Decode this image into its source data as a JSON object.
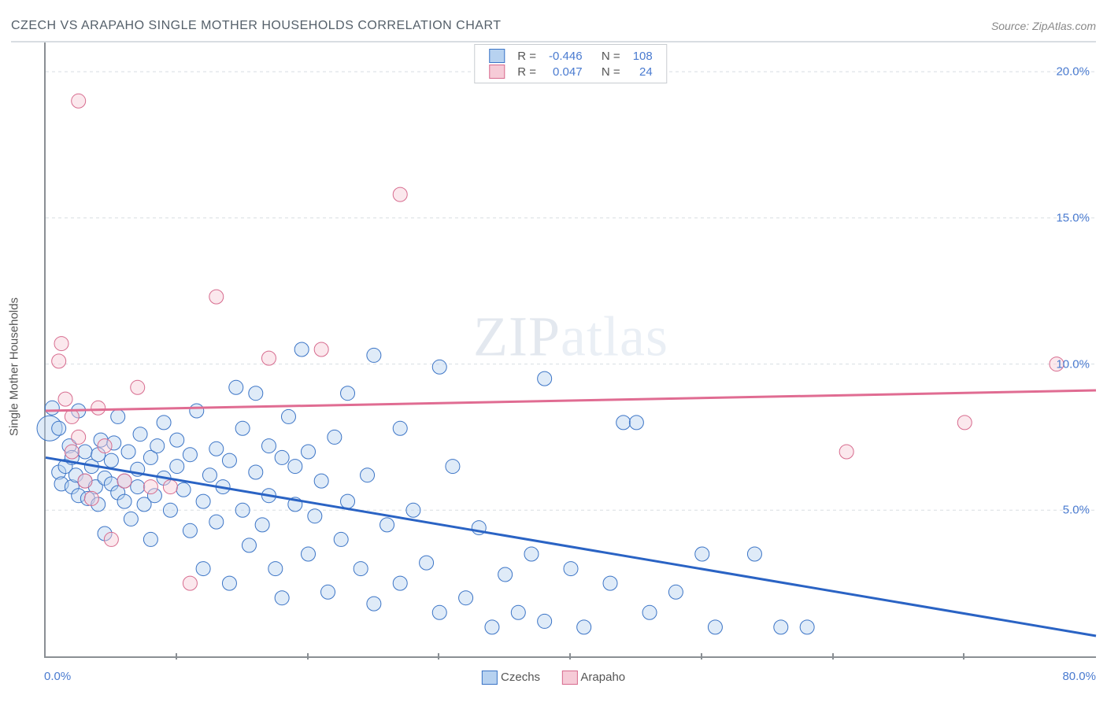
{
  "title": "CZECH VS ARAPAHO SINGLE MOTHER HOUSEHOLDS CORRELATION CHART",
  "source_label": "Source: ZipAtlas.com",
  "y_axis_label": "Single Mother Households",
  "watermark": {
    "zip": "ZIP",
    "atlas": "atlas"
  },
  "chart": {
    "type": "scatter",
    "background_color": "#ffffff",
    "grid_color": "#d8dde2",
    "axis_color": "#8a8f94",
    "tick_label_color": "#4a7bd0",
    "xlim": [
      0,
      80
    ],
    "ylim": [
      0,
      21
    ],
    "x_ticks": [
      0,
      10,
      20,
      30,
      40,
      50,
      60,
      70,
      80
    ],
    "x_tick_labels": {
      "0": "0.0%",
      "80": "80.0%"
    },
    "y_ticks": [
      5,
      10,
      15,
      20
    ],
    "y_tick_labels": {
      "5": "5.0%",
      "10": "10.0%",
      "15": "15.0%",
      "20": "20.0%"
    },
    "marker_radius": 9,
    "marker_radius_large": 16,
    "marker_stroke_width": 1,
    "marker_fill_opacity": 0.45,
    "trend_line_width": 3
  },
  "stats_legend": {
    "rows": [
      {
        "swatch_fill": "#b7d2f0",
        "swatch_stroke": "#3b74c6",
        "r_label": "R =",
        "r_value": "-0.446",
        "n_label": "N =",
        "n_value": "108"
      },
      {
        "swatch_fill": "#f6cbd7",
        "swatch_stroke": "#d76b8e",
        "r_label": "R =",
        "r_value": "0.047",
        "n_label": "N =",
        "n_value": "24"
      }
    ]
  },
  "series_legend": {
    "items": [
      {
        "swatch_fill": "#b7d2f0",
        "swatch_stroke": "#3b74c6",
        "label": "Czechs"
      },
      {
        "swatch_fill": "#f6cbd7",
        "swatch_stroke": "#d76b8e",
        "label": "Arapaho"
      }
    ]
  },
  "series": {
    "czechs": {
      "fill": "#b7d2f0",
      "stroke": "#3b74c6",
      "trend_color": "#2a63c4",
      "trend": {
        "x1": 0,
        "y1": 6.8,
        "x2": 80,
        "y2": 0.7
      },
      "large_points": [
        {
          "x": 0.3,
          "y": 7.8
        }
      ],
      "points": [
        {
          "x": 0.5,
          "y": 8.5
        },
        {
          "x": 1,
          "y": 7.8
        },
        {
          "x": 1,
          "y": 6.3
        },
        {
          "x": 1.2,
          "y": 5.9
        },
        {
          "x": 1.5,
          "y": 6.5
        },
        {
          "x": 1.8,
          "y": 7.2
        },
        {
          "x": 2,
          "y": 5.8
        },
        {
          "x": 2,
          "y": 6.8
        },
        {
          "x": 2.3,
          "y": 6.2
        },
        {
          "x": 2.5,
          "y": 5.5
        },
        {
          "x": 2.5,
          "y": 8.4
        },
        {
          "x": 3,
          "y": 6.0
        },
        {
          "x": 3,
          "y": 7.0
        },
        {
          "x": 3.2,
          "y": 5.4
        },
        {
          "x": 3.5,
          "y": 6.5
        },
        {
          "x": 3.8,
          "y": 5.8
        },
        {
          "x": 4,
          "y": 6.9
        },
        {
          "x": 4,
          "y": 5.2
        },
        {
          "x": 4.2,
          "y": 7.4
        },
        {
          "x": 4.5,
          "y": 6.1
        },
        {
          "x": 4.5,
          "y": 4.2
        },
        {
          "x": 5,
          "y": 5.9
        },
        {
          "x": 5,
          "y": 6.7
        },
        {
          "x": 5.2,
          "y": 7.3
        },
        {
          "x": 5.5,
          "y": 5.6
        },
        {
          "x": 5.5,
          "y": 8.2
        },
        {
          "x": 6,
          "y": 6.0
        },
        {
          "x": 6,
          "y": 5.3
        },
        {
          "x": 6.3,
          "y": 7.0
        },
        {
          "x": 6.5,
          "y": 4.7
        },
        {
          "x": 7,
          "y": 6.4
        },
        {
          "x": 7,
          "y": 5.8
        },
        {
          "x": 7.2,
          "y": 7.6
        },
        {
          "x": 7.5,
          "y": 5.2
        },
        {
          "x": 8,
          "y": 6.8
        },
        {
          "x": 8,
          "y": 4.0
        },
        {
          "x": 8.3,
          "y": 5.5
        },
        {
          "x": 8.5,
          "y": 7.2
        },
        {
          "x": 9,
          "y": 6.1
        },
        {
          "x": 9,
          "y": 8.0
        },
        {
          "x": 9.5,
          "y": 5.0
        },
        {
          "x": 10,
          "y": 6.5
        },
        {
          "x": 10,
          "y": 7.4
        },
        {
          "x": 10.5,
          "y": 5.7
        },
        {
          "x": 11,
          "y": 4.3
        },
        {
          "x": 11,
          "y": 6.9
        },
        {
          "x": 11.5,
          "y": 8.4
        },
        {
          "x": 12,
          "y": 5.3
        },
        {
          "x": 12,
          "y": 3.0
        },
        {
          "x": 12.5,
          "y": 6.2
        },
        {
          "x": 13,
          "y": 7.1
        },
        {
          "x": 13,
          "y": 4.6
        },
        {
          "x": 13.5,
          "y": 5.8
        },
        {
          "x": 14,
          "y": 2.5
        },
        {
          "x": 14,
          "y": 6.7
        },
        {
          "x": 14.5,
          "y": 9.2
        },
        {
          "x": 15,
          "y": 5.0
        },
        {
          "x": 15,
          "y": 7.8
        },
        {
          "x": 15.5,
          "y": 3.8
        },
        {
          "x": 16,
          "y": 6.3
        },
        {
          "x": 16,
          "y": 9.0
        },
        {
          "x": 16.5,
          "y": 4.5
        },
        {
          "x": 17,
          "y": 7.2
        },
        {
          "x": 17,
          "y": 5.5
        },
        {
          "x": 17.5,
          "y": 3.0
        },
        {
          "x": 18,
          "y": 6.8
        },
        {
          "x": 18,
          "y": 2.0
        },
        {
          "x": 18.5,
          "y": 8.2
        },
        {
          "x": 19,
          "y": 5.2
        },
        {
          "x": 19,
          "y": 6.5
        },
        {
          "x": 19.5,
          "y": 10.5
        },
        {
          "x": 20,
          "y": 3.5
        },
        {
          "x": 20,
          "y": 7.0
        },
        {
          "x": 20.5,
          "y": 4.8
        },
        {
          "x": 21,
          "y": 6.0
        },
        {
          "x": 21.5,
          "y": 2.2
        },
        {
          "x": 22,
          "y": 7.5
        },
        {
          "x": 22.5,
          "y": 4.0
        },
        {
          "x": 23,
          "y": 9.0
        },
        {
          "x": 23,
          "y": 5.3
        },
        {
          "x": 24,
          "y": 3.0
        },
        {
          "x": 24.5,
          "y": 6.2
        },
        {
          "x": 25,
          "y": 10.3
        },
        {
          "x": 25,
          "y": 1.8
        },
        {
          "x": 26,
          "y": 4.5
        },
        {
          "x": 27,
          "y": 7.8
        },
        {
          "x": 27,
          "y": 2.5
        },
        {
          "x": 28,
          "y": 5.0
        },
        {
          "x": 29,
          "y": 3.2
        },
        {
          "x": 30,
          "y": 9.9
        },
        {
          "x": 30,
          "y": 1.5
        },
        {
          "x": 31,
          "y": 6.5
        },
        {
          "x": 32,
          "y": 2.0
        },
        {
          "x": 33,
          "y": 4.4
        },
        {
          "x": 34,
          "y": 1.0
        },
        {
          "x": 35,
          "y": 2.8
        },
        {
          "x": 36,
          "y": 1.5
        },
        {
          "x": 37,
          "y": 3.5
        },
        {
          "x": 38,
          "y": 9.5
        },
        {
          "x": 38,
          "y": 1.2
        },
        {
          "x": 40,
          "y": 3.0
        },
        {
          "x": 41,
          "y": 1.0
        },
        {
          "x": 43,
          "y": 2.5
        },
        {
          "x": 44,
          "y": 8.0
        },
        {
          "x": 45,
          "y": 8.0
        },
        {
          "x": 46,
          "y": 1.5
        },
        {
          "x": 48,
          "y": 2.2
        },
        {
          "x": 50,
          "y": 3.5
        },
        {
          "x": 51,
          "y": 1.0
        },
        {
          "x": 54,
          "y": 3.5
        },
        {
          "x": 56,
          "y": 1.0
        },
        {
          "x": 58,
          "y": 1.0
        }
      ]
    },
    "arapaho": {
      "fill": "#f6cbd7",
      "stroke": "#d76b8e",
      "trend_color": "#e06c92",
      "trend": {
        "x1": 0,
        "y1": 8.4,
        "x2": 80,
        "y2": 9.1
      },
      "points": [
        {
          "x": 1,
          "y": 10.1
        },
        {
          "x": 1.2,
          "y": 10.7
        },
        {
          "x": 1.5,
          "y": 8.8
        },
        {
          "x": 2,
          "y": 8.2
        },
        {
          "x": 2,
          "y": 7.0
        },
        {
          "x": 2.5,
          "y": 19.0
        },
        {
          "x": 2.5,
          "y": 7.5
        },
        {
          "x": 3,
          "y": 6.0
        },
        {
          "x": 3.5,
          "y": 5.4
        },
        {
          "x": 4,
          "y": 8.5
        },
        {
          "x": 4.5,
          "y": 7.2
        },
        {
          "x": 5,
          "y": 4.0
        },
        {
          "x": 6,
          "y": 6.0
        },
        {
          "x": 7,
          "y": 9.2
        },
        {
          "x": 8,
          "y": 5.8
        },
        {
          "x": 9.5,
          "y": 5.8
        },
        {
          "x": 11,
          "y": 2.5
        },
        {
          "x": 13,
          "y": 12.3
        },
        {
          "x": 17,
          "y": 10.2
        },
        {
          "x": 21,
          "y": 10.5
        },
        {
          "x": 27,
          "y": 15.8
        },
        {
          "x": 61,
          "y": 7.0
        },
        {
          "x": 70,
          "y": 8.0
        },
        {
          "x": 77,
          "y": 10.0
        }
      ]
    }
  }
}
